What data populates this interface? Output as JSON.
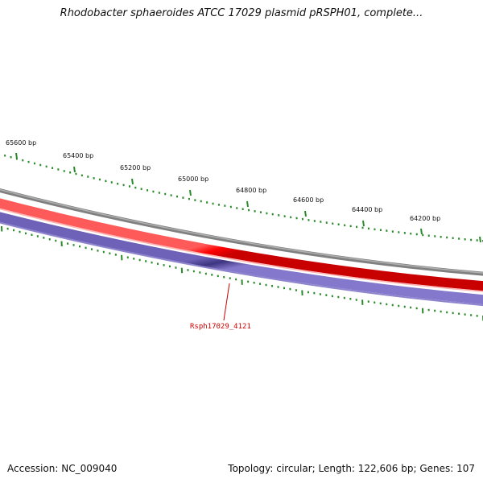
{
  "title": "Rhodobacter sphaeroides ATCC 17029 plasmid pRSPH01, complete...",
  "footer": {
    "accession": "Accession: NC_009040",
    "summary": "Topology: circular; Length: 122,606 bp; Genes: 107"
  },
  "scale": {
    "unit": "bp",
    "labels": [
      "65600 bp",
      "65400 bp",
      "65200 bp",
      "65000 bp",
      "64800 bp",
      "64600 bp",
      "64400 bp",
      "64200 bp"
    ]
  },
  "gene": {
    "label": "Rsph17029_4121"
  },
  "colors": {
    "backbone": "#808080",
    "forward_strand": "#ff0000",
    "reverse_strand": "#3d3580",
    "ticks": "#2a8a2a",
    "gene_label": "#cc0000"
  }
}
